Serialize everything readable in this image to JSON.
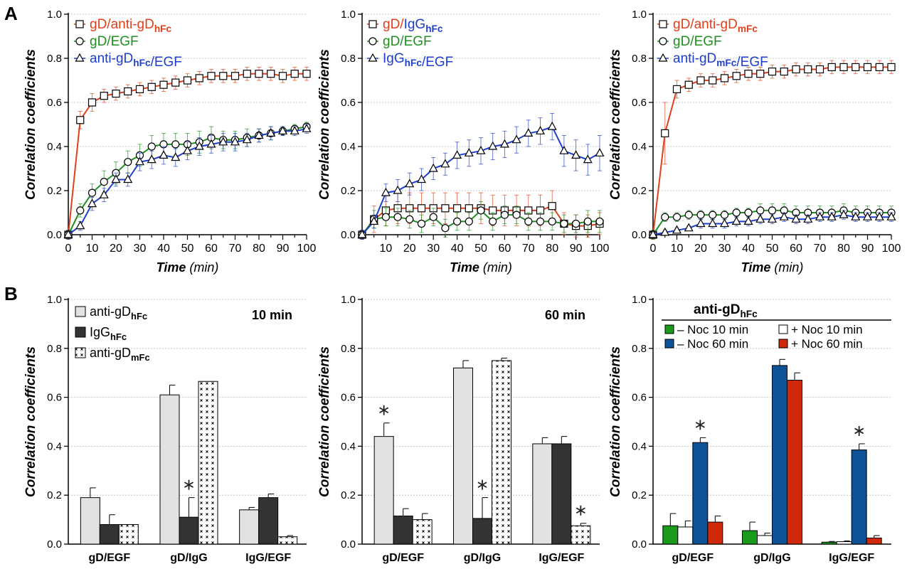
{
  "panels": {
    "a": "A",
    "b": "B"
  },
  "axis": {
    "y": "Correlation coefficients",
    "x_bold": "Time",
    "x_unit": "(min)"
  },
  "sub": {
    "hfc": "hFc",
    "mfc": "mFc"
  },
  "colors": {
    "red": "#e2401b",
    "green": "#1f8f1f",
    "blue": "#1d3fcc",
    "light": "#e2e2e2",
    "dark": "#333333",
    "green_bar": "#1a9a1a",
    "blue_bar": "#0d5296",
    "red_bar": "#d0280a"
  },
  "chart_data": [
    {
      "type": "line",
      "panel": "A1",
      "x": [
        0,
        5,
        10,
        15,
        20,
        25,
        30,
        35,
        40,
        45,
        50,
        55,
        60,
        65,
        70,
        75,
        80,
        85,
        90,
        95,
        100
      ],
      "xticks": [
        0,
        10,
        20,
        30,
        40,
        50,
        60,
        70,
        80,
        90,
        100
      ],
      "xlim": [
        0,
        100
      ],
      "ylim": [
        0,
        1.0
      ],
      "yticks": [
        "0.0",
        "0.2",
        "0.4",
        "0.6",
        "0.8",
        "1.0"
      ],
      "series": [
        {
          "name_parts": [
            [
              "gD/anti-gD",
              "red"
            ],
            [
              "hFc",
              "red",
              "sub"
            ]
          ],
          "color": "red",
          "marker": "square",
          "values": [
            0,
            0.52,
            0.6,
            0.63,
            0.64,
            0.65,
            0.66,
            0.67,
            0.68,
            0.69,
            0.7,
            0.71,
            0.72,
            0.72,
            0.72,
            0.73,
            0.73,
            0.73,
            0.72,
            0.73,
            0.73
          ],
          "err": [
            0.02,
            0.04,
            0.04,
            0.03,
            0.03,
            0.03,
            0.03,
            0.03,
            0.03,
            0.03,
            0.03,
            0.03,
            0.03,
            0.03,
            0.03,
            0.03,
            0.03,
            0.03,
            0.03,
            0.03,
            0.03
          ]
        },
        {
          "name_parts": [
            [
              "gD/EGF",
              "green"
            ]
          ],
          "color": "green",
          "marker": "circle",
          "values": [
            0,
            0.11,
            0.19,
            0.24,
            0.28,
            0.33,
            0.36,
            0.4,
            0.41,
            0.41,
            0.41,
            0.42,
            0.44,
            0.43,
            0.43,
            0.44,
            0.45,
            0.46,
            0.47,
            0.48,
            0.49
          ],
          "err": [
            0.02,
            0.03,
            0.04,
            0.05,
            0.05,
            0.05,
            0.05,
            0.05,
            0.05,
            0.05,
            0.05,
            0.05,
            0.05,
            0.04,
            0.04,
            0.04,
            0.03,
            0.03,
            0.02,
            0.02,
            0.02
          ]
        },
        {
          "name_parts": [
            [
              "anti-gD",
              "blue"
            ],
            [
              "hFc",
              "blue",
              "sub"
            ],
            [
              "/EGF",
              "blue"
            ]
          ],
          "color": "blue",
          "marker": "triangle",
          "values": [
            0,
            0.04,
            0.14,
            0.18,
            0.25,
            0.25,
            0.33,
            0.34,
            0.36,
            0.35,
            0.38,
            0.4,
            0.41,
            0.42,
            0.42,
            0.43,
            0.45,
            0.46,
            0.47,
            0.47,
            0.48
          ],
          "err": [
            0.02,
            0.02,
            0.03,
            0.03,
            0.03,
            0.03,
            0.04,
            0.04,
            0.04,
            0.04,
            0.04,
            0.04,
            0.04,
            0.04,
            0.04,
            0.03,
            0.03,
            0.03,
            0.02,
            0.02,
            0.02
          ]
        }
      ]
    },
    {
      "type": "line",
      "panel": "A2",
      "x": [
        0,
        5,
        10,
        15,
        20,
        25,
        30,
        35,
        40,
        45,
        50,
        55,
        60,
        65,
        70,
        75,
        80,
        85,
        90,
        95,
        100
      ],
      "xticks": [
        10,
        20,
        30,
        40,
        50,
        60,
        70,
        80,
        90,
        100
      ],
      "xlim": [
        0,
        100
      ],
      "ylim": [
        0,
        1.0
      ],
      "yticks": [
        "0.0",
        "0.2",
        "0.4",
        "0.6",
        "0.8",
        "1.0"
      ],
      "series": [
        {
          "name_parts": [
            [
              "gD/",
              "red"
            ],
            [
              "IgG",
              "blue"
            ],
            [
              "hFc",
              "blue",
              "sub"
            ]
          ],
          "color": "red",
          "marker": "square",
          "values": [
            0,
            0.07,
            0.11,
            0.12,
            0.12,
            0.12,
            0.12,
            0.12,
            0.12,
            0.12,
            0.12,
            0.11,
            0.11,
            0.11,
            0.11,
            0.11,
            0.13,
            0.05,
            0.04,
            0.04,
            0.05
          ],
          "err": [
            0.02,
            0.06,
            0.07,
            0.07,
            0.07,
            0.07,
            0.07,
            0.07,
            0.07,
            0.07,
            0.07,
            0.07,
            0.07,
            0.07,
            0.07,
            0.07,
            0.07,
            0.05,
            0.05,
            0.05,
            0.05
          ]
        },
        {
          "name_parts": [
            [
              "gD/EGF",
              "green"
            ]
          ],
          "color": "green",
          "marker": "circle",
          "values": [
            0,
            0.07,
            0.08,
            0.08,
            0.07,
            0.05,
            0.08,
            0.03,
            0.06,
            0.06,
            0.11,
            0.06,
            0.09,
            0.09,
            0.06,
            0.06,
            0.06,
            0.05,
            0.05,
            0.06,
            0.06
          ],
          "err": [
            0.02,
            0.04,
            0.04,
            0.04,
            0.04,
            0.04,
            0.04,
            0.04,
            0.04,
            0.04,
            0.04,
            0.04,
            0.04,
            0.04,
            0.04,
            0.04,
            0.04,
            0.04,
            0.04,
            0.05,
            0.05
          ]
        },
        {
          "name_parts": [
            [
              "IgG",
              "blue"
            ],
            [
              "hFc",
              "blue",
              "sub"
            ],
            [
              "/EGF",
              "blue"
            ]
          ],
          "color": "blue",
          "marker": "triangle",
          "values": [
            0,
            0.06,
            0.19,
            0.2,
            0.23,
            0.25,
            0.3,
            0.32,
            0.36,
            0.37,
            0.38,
            0.4,
            0.41,
            0.43,
            0.46,
            0.47,
            0.49,
            0.38,
            0.36,
            0.34,
            0.37
          ],
          "err": [
            0.02,
            0.03,
            0.04,
            0.05,
            0.05,
            0.05,
            0.05,
            0.05,
            0.06,
            0.06,
            0.06,
            0.06,
            0.06,
            0.06,
            0.06,
            0.06,
            0.06,
            0.07,
            0.07,
            0.07,
            0.08
          ]
        }
      ]
    },
    {
      "type": "line",
      "panel": "A3",
      "x": [
        0,
        5,
        10,
        15,
        20,
        25,
        30,
        35,
        40,
        45,
        50,
        55,
        60,
        65,
        70,
        75,
        80,
        85,
        90,
        95,
        100
      ],
      "xticks": [
        0,
        10,
        20,
        30,
        40,
        50,
        60,
        70,
        80,
        90,
        100
      ],
      "xlim": [
        0,
        100
      ],
      "ylim": [
        0,
        1.0
      ],
      "yticks": [
        "0.0",
        "0.2",
        "0.4",
        "0.6",
        "0.8",
        "1.0"
      ],
      "series": [
        {
          "name_parts": [
            [
              "gD/anti-gD",
              "red"
            ],
            [
              "mFc",
              "red",
              "sub"
            ]
          ],
          "color": "red",
          "marker": "square",
          "values": [
            0,
            0.46,
            0.66,
            0.68,
            0.7,
            0.7,
            0.71,
            0.72,
            0.73,
            0.73,
            0.74,
            0.74,
            0.75,
            0.75,
            0.75,
            0.76,
            0.76,
            0.76,
            0.76,
            0.76,
            0.76
          ],
          "err": [
            0.02,
            0.14,
            0.04,
            0.03,
            0.03,
            0.03,
            0.03,
            0.03,
            0.03,
            0.03,
            0.03,
            0.03,
            0.03,
            0.03,
            0.03,
            0.03,
            0.03,
            0.03,
            0.03,
            0.03,
            0.03
          ]
        },
        {
          "name_parts": [
            [
              "gD/EGF",
              "green"
            ]
          ],
          "color": "green",
          "marker": "circle",
          "values": [
            0,
            0.08,
            0.08,
            0.09,
            0.09,
            0.09,
            0.09,
            0.1,
            0.1,
            0.11,
            0.11,
            0.11,
            0.1,
            0.1,
            0.1,
            0.1,
            0.11,
            0.1,
            0.1,
            0.1,
            0.1
          ],
          "err": [
            0.02,
            0.02,
            0.02,
            0.02,
            0.02,
            0.02,
            0.02,
            0.02,
            0.02,
            0.03,
            0.03,
            0.03,
            0.03,
            0.03,
            0.03,
            0.03,
            0.03,
            0.03,
            0.03,
            0.03,
            0.03
          ]
        },
        {
          "name_parts": [
            [
              "anti-gD",
              "blue"
            ],
            [
              "mFc",
              "blue",
              "sub"
            ],
            [
              "/EGF",
              "blue"
            ]
          ],
          "color": "blue",
          "marker": "triangle",
          "values": [
            0,
            0.01,
            0.02,
            0.03,
            0.05,
            0.05,
            0.05,
            0.06,
            0.06,
            0.07,
            0.07,
            0.08,
            0.07,
            0.07,
            0.08,
            0.08,
            0.09,
            0.08,
            0.08,
            0.08,
            0.08
          ],
          "err": [
            0.01,
            0.01,
            0.01,
            0.01,
            0.02,
            0.02,
            0.02,
            0.02,
            0.02,
            0.02,
            0.02,
            0.02,
            0.02,
            0.02,
            0.02,
            0.02,
            0.02,
            0.02,
            0.02,
            0.02,
            0.02
          ]
        }
      ]
    },
    {
      "type": "bar",
      "panel": "B1",
      "categories": [
        "gD/EGF",
        "gD/IgG",
        "IgG/EGF"
      ],
      "ylim": [
        0,
        1.0
      ],
      "yticks": [
        "0.0",
        "0.2",
        "0.4",
        "0.6",
        "0.8",
        "1.0"
      ],
      "annotation": "10 min",
      "series": [
        {
          "name_parts": [
            [
              "anti-gD"
            ],
            [
              "hFc",
              "",
              "sub"
            ]
          ],
          "fill": "light",
          "values": [
            0.19,
            0.61,
            0.14
          ],
          "err": [
            0.04,
            0.04,
            0.01
          ],
          "star": [
            false,
            false,
            false
          ]
        },
        {
          "name_parts": [
            [
              "IgG"
            ],
            [
              "hFc",
              "",
              "sub"
            ]
          ],
          "fill": "dark",
          "values": [
            0.08,
            0.11,
            0.19
          ],
          "err": [
            0.04,
            0.08,
            0.015
          ],
          "star": [
            false,
            true,
            false
          ]
        },
        {
          "name_parts": [
            [
              "anti-gD"
            ],
            [
              "mFc",
              "",
              "sub"
            ]
          ],
          "fill": "cross",
          "values": [
            0.08,
            0.665,
            0.03
          ],
          "err": [
            0.0,
            0.0,
            0.005
          ],
          "star": [
            false,
            false,
            false
          ]
        }
      ]
    },
    {
      "type": "bar",
      "panel": "B2",
      "categories": [
        "gD/EGF",
        "gD/IgG",
        "IgG/EGF"
      ],
      "ylim": [
        0,
        1.0
      ],
      "yticks": [
        "0.0",
        "0.2",
        "0.4",
        "0.6",
        "0.8",
        "1.0"
      ],
      "annotation": "60 min",
      "series": [
        {
          "fill": "light",
          "values": [
            0.44,
            0.72,
            0.41
          ],
          "err": [
            0.055,
            0.03,
            0.025
          ],
          "star": [
            true,
            false,
            false
          ]
        },
        {
          "fill": "dark",
          "values": [
            0.115,
            0.105,
            0.41
          ],
          "err": [
            0.03,
            0.085,
            0.03
          ],
          "star": [
            false,
            true,
            false
          ]
        },
        {
          "fill": "cross",
          "values": [
            0.1,
            0.75,
            0.075
          ],
          "err": [
            0.025,
            0.01,
            0.01
          ],
          "star": [
            false,
            false,
            true
          ]
        }
      ]
    },
    {
      "type": "bar",
      "panel": "B3",
      "categories": [
        "gD/EGF",
        "gD/IgG",
        "IgG/EGF"
      ],
      "ylim": [
        0,
        1.0
      ],
      "yticks": [
        "0.0",
        "0.2",
        "0.4",
        "0.6",
        "0.8",
        "1.0"
      ],
      "legend_title_parts": [
        [
          "anti-gD"
        ],
        [
          "hFc",
          "",
          "sub"
        ]
      ],
      "series": [
        {
          "name": "– Noc 10 min",
          "fill": "green_bar",
          "values": [
            0.075,
            0.055,
            0.008
          ],
          "err": [
            0.05,
            0.035,
            0.003
          ],
          "star": [
            false,
            false,
            false
          ]
        },
        {
          "name": "+ Noc 10 min",
          "fill": "white",
          "values": [
            0.07,
            0.035,
            0.01
          ],
          "err": [
            0.025,
            0.01,
            0.003
          ],
          "star": [
            false,
            false,
            false
          ]
        },
        {
          "name": "– Noc 60 min",
          "fill": "blue_bar",
          "values": [
            0.415,
            0.73,
            0.385
          ],
          "err": [
            0.02,
            0.025,
            0.025
          ],
          "star": [
            true,
            false,
            true
          ]
        },
        {
          "name": "+ Noc 60 min",
          "fill": "red_bar",
          "values": [
            0.09,
            0.67,
            0.025
          ],
          "err": [
            0.025,
            0.03,
            0.01
          ],
          "star": [
            false,
            false,
            false
          ]
        }
      ]
    }
  ]
}
